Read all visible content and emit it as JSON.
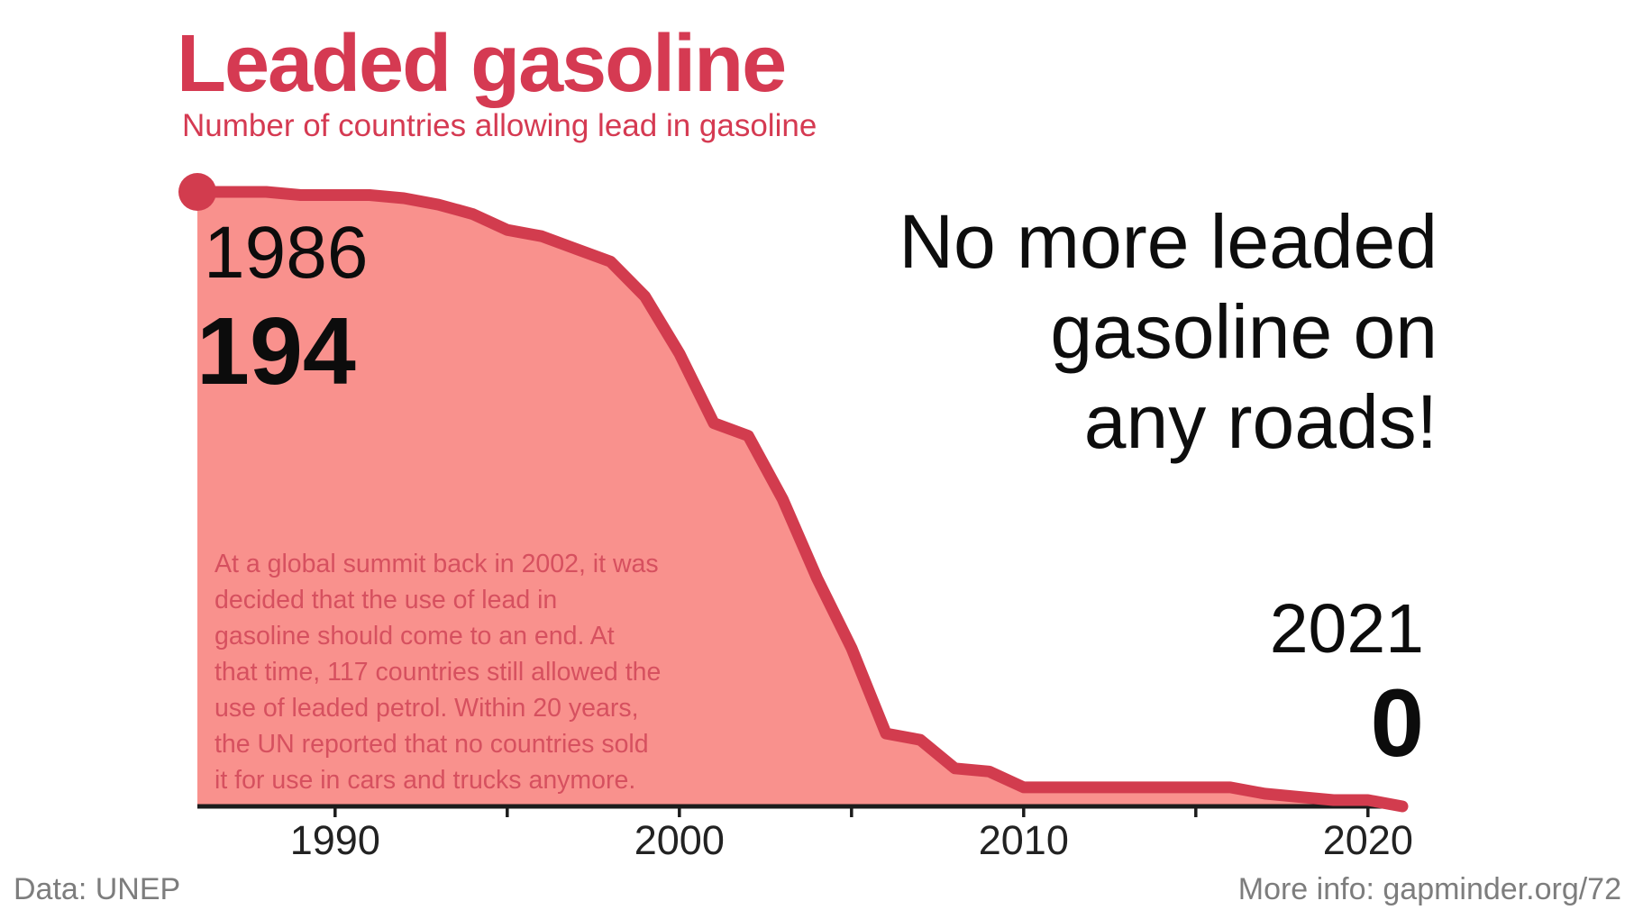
{
  "palette": {
    "line_red": "#d23c4e",
    "fill_pink": "#f9918d",
    "title_red": "#d53a52",
    "annotation_red": "#d6505f",
    "text_dark": "#0c0c0c",
    "footer_gray": "#7d7d7d",
    "axis_color": "#1c1c1c"
  },
  "chart_data": {
    "type": "area",
    "title": "Leaded gasoline",
    "subtitle": "Number of countries allowing lead in gasoline",
    "x": [
      1986,
      1987,
      1988,
      1989,
      1990,
      1991,
      1992,
      1993,
      1994,
      1995,
      1996,
      1997,
      1998,
      1999,
      2000,
      2001,
      2002,
      2003,
      2004,
      2005,
      2006,
      2007,
      2008,
      2009,
      2010,
      2011,
      2012,
      2013,
      2014,
      2015,
      2016,
      2017,
      2018,
      2019,
      2020,
      2021
    ],
    "values": [
      194,
      194,
      194,
      193,
      193,
      193,
      192,
      190,
      187,
      182,
      180,
      176,
      172,
      161,
      143,
      121,
      117,
      97,
      72,
      50,
      23,
      21,
      12,
      11,
      6,
      6,
      6,
      6,
      6,
      6,
      6,
      4,
      3,
      2,
      2,
      0
    ],
    "xlim": [
      1986,
      2021.5
    ],
    "ylim": [
      0,
      194
    ],
    "grid": "off",
    "legend": "none",
    "x_ticks_minor": [
      1990,
      1995,
      2000,
      2005,
      2010,
      2015,
      2020
    ],
    "x_tick_labels": [
      "1990",
      "2000",
      "2010",
      "2020"
    ],
    "x_tick_label_years": [
      1990,
      2000,
      2010,
      2020
    ],
    "start_point": {
      "year_label": "1986",
      "value_label": "194",
      "year": 1986,
      "value": 194
    },
    "end_point": {
      "year_label": "2021",
      "value_label": "0",
      "year": 2021,
      "value": 0
    }
  },
  "annotations": {
    "callout": "No more leaded\ngasoline on\nany roads!",
    "paragraph": "At a global summit back in 2002, it was\ndecided that the use of lead in\ngasoline should come to an end. At\nthat time, 117 countries still allowed the\nuse of leaded petrol. Within 20 years,\nthe UN reported that no countries sold\nit for use in cars and trucks anymore."
  },
  "footer": {
    "source": "Data: UNEP",
    "more_info": "More info: gapminder.org/72"
  }
}
